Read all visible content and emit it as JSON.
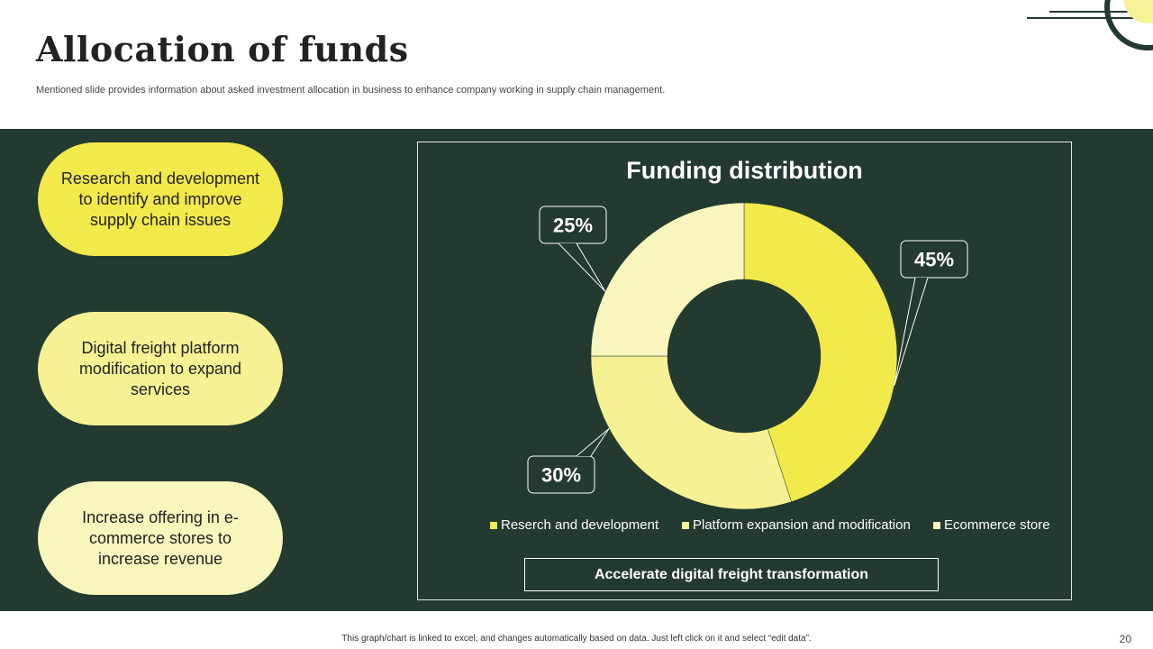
{
  "header": {
    "title": "Allocation of  funds",
    "subtitle": "Mentioned slide provides information about asked investment allocation in business to enhance company working in supply chain management."
  },
  "pills": [
    {
      "text": "Research and development to identify and improve supply chain issues",
      "color": "#f2e94b"
    },
    {
      "text": "Digital freight platform modification to expand services",
      "color": "#f6f193"
    },
    {
      "text": "Increase offering in e-commerce stores to increase revenue",
      "color": "#f8f6bd"
    }
  ],
  "chart_data": {
    "type": "pie",
    "variant": "donut",
    "title": "Funding distribution",
    "categories": [
      "Reserch and development",
      "Platform expansion and modification",
      "Ecommerce store"
    ],
    "values": [
      45,
      30,
      25
    ],
    "data_labels": [
      "45%",
      "30%",
      "25%"
    ],
    "colors": [
      "#f2e94b",
      "#f6f193",
      "#f8f6bd"
    ],
    "legend_position": "bottom"
  },
  "cta_label": "Accelerate digital freight transformation",
  "footer": {
    "note": "This graph/chart is linked to excel, and changes automatically based on data. Just left click on it and select “edit data”.",
    "page_number": "20"
  },
  "colors": {
    "band": "#223a2f",
    "accent": "#f2e94b"
  }
}
